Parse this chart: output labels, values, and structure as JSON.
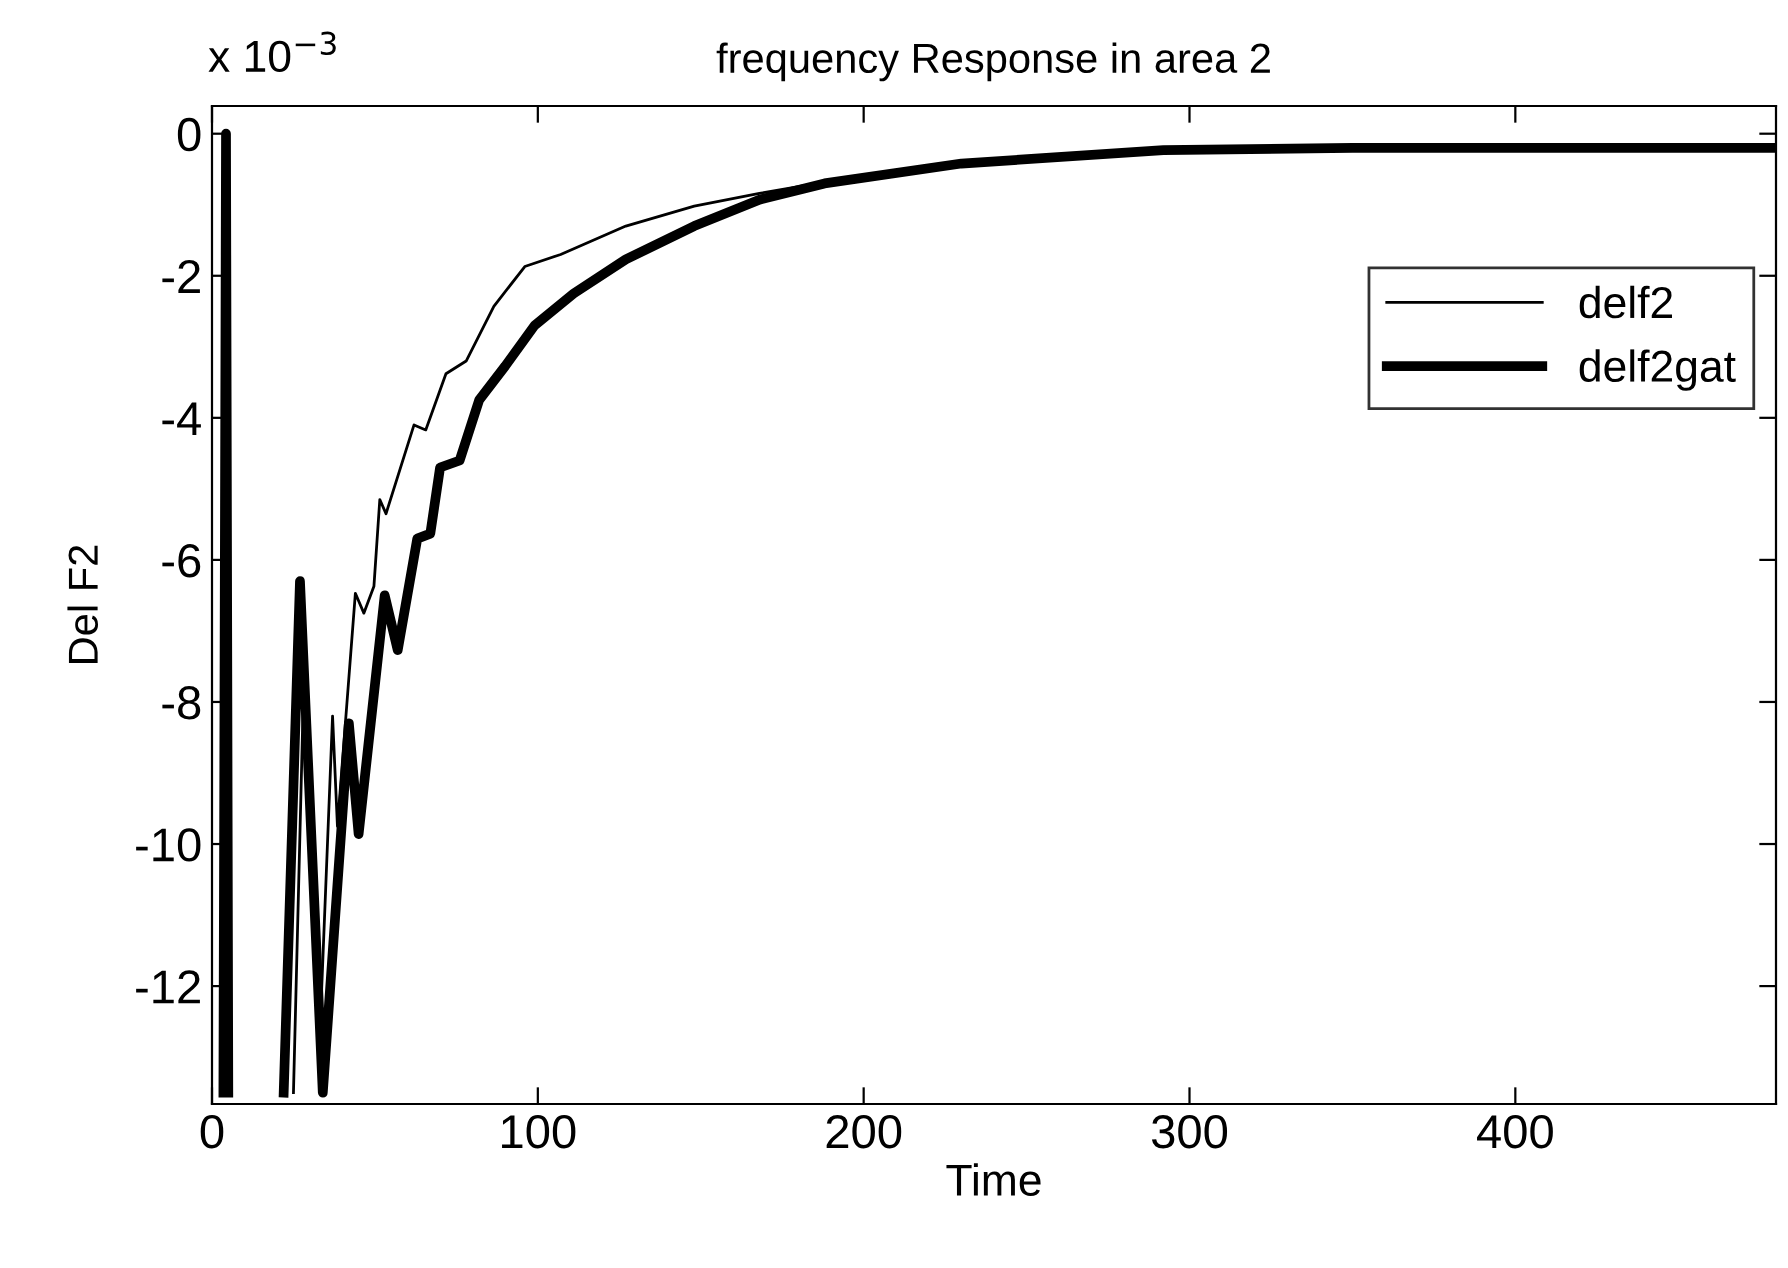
{
  "chart_data": {
    "type": "line",
    "title": "frequency Response in area 2",
    "xlabel": "Time",
    "ylabel": "Del F2",
    "annotations": [
      "x 10$^{−3}$"
    ],
    "xlim": [
      0,
      480
    ],
    "ylim": [
      -13.66,
      0.39
    ],
    "xticks": [
      0,
      100,
      200,
      300,
      400
    ],
    "yticks": [
      0,
      -2,
      -4,
      -6,
      -8,
      -10,
      -12
    ],
    "grid": false,
    "legend": "top right",
    "line_style": "solid",
    "marker": "none",
    "series": [
      {
        "name": "delf2",
        "color": "#000000",
        "x": [
          25,
          28,
          33,
          37,
          38.5,
          44,
          46.6,
          49.7,
          51.5,
          53.4,
          62,
          65.6,
          71.8,
          78,
          86.5,
          96,
          107,
          127,
          148,
          168,
          188,
          230,
          292,
          350,
          480
        ],
        "values": [
          -13.5,
          -8.0,
          -12.8,
          -8.2,
          -9.75,
          -6.47,
          -6.75,
          -6.37,
          -5.15,
          -5.35,
          -4.1,
          -4.17,
          -3.38,
          -3.2,
          -2.43,
          -1.87,
          -1.7,
          -1.3,
          -1.02,
          -0.84,
          -0.68,
          -0.42,
          -0.23,
          -0.2,
          -0.2
        ]
      },
      {
        "name": "delf2gat",
        "color": "#000000",
        "x": [
          3.5,
          4.3,
          5,
          13,
          22,
          27,
          34,
          42,
          45,
          53,
          57,
          63,
          67,
          70,
          76,
          82,
          90,
          99,
          111,
          127,
          148,
          168,
          188,
          230,
          292,
          350,
          480
        ],
        "values": [
          -13.5,
          0,
          -13.5,
          null,
          -13.5,
          -6.3,
          -13.5,
          -8.3,
          -9.86,
          -6.5,
          -7.27,
          -5.7,
          -5.63,
          -4.7,
          -4.6,
          -3.75,
          -3.27,
          -2.7,
          -2.25,
          -1.77,
          -1.3,
          -0.93,
          -0.7,
          -0.42,
          -0.23,
          -0.2,
          -0.2
        ]
      }
    ]
  }
}
